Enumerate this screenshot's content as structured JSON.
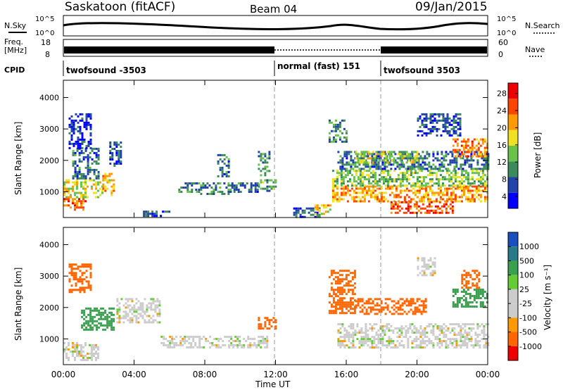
{
  "header": {
    "title": "Saskatoon (fitACF)",
    "beam": "Beam 04",
    "date": "09/Jan/2015"
  },
  "noise_panel": {
    "left_label": "N.Sky",
    "left_ticks": [
      "10^5",
      "10^0"
    ],
    "right_label": "N.Search",
    "right_ticks": [
      "10^5",
      "10^0"
    ]
  },
  "freq_panel": {
    "left_label_1": "Freq.",
    "left_label_2": "[MHz]",
    "left_ticks": [
      "18",
      "8"
    ],
    "right_label": "Nave",
    "right_ticks": [
      "60",
      "0"
    ]
  },
  "cpid_panel": {
    "label": "CPID",
    "segments": [
      {
        "start": 0,
        "end": 12,
        "text": "twofsound -3503"
      },
      {
        "start": 12,
        "end": 18,
        "text": "normal (fast) 151"
      },
      {
        "start": 18,
        "end": 24,
        "text": "twofsound 3503"
      }
    ]
  },
  "power_panel": {
    "ylabel": "Slant Range [km]",
    "yticks": [
      "4000",
      "3000",
      "2000",
      "1000"
    ],
    "colorbar_label": "Power [dB]",
    "colorbar_ticks": [
      "28",
      "24",
      "20",
      "16",
      "12",
      "8",
      "4"
    ],
    "colors": [
      "#0000ff",
      "#2244aa",
      "#3a8a5a",
      "#66c24a",
      "#f0e020",
      "#ff9a00",
      "#ff4400",
      "#ee0000"
    ]
  },
  "velocity_panel": {
    "ylabel": "Slant Range [km]",
    "yticks": [
      "4000",
      "3000",
      "2000",
      "1000"
    ],
    "colorbar_label": "Velocity [m s⁻¹]",
    "colorbar_ticks": [
      "1000",
      "500",
      "100",
      "25",
      "-25",
      "-100",
      "-500",
      "-1000"
    ],
    "colors": [
      "#1a4fc0",
      "#2a7a8a",
      "#3aa050",
      "#66cc33",
      "#cccccc",
      "#cccccc",
      "#ff9900",
      "#ff6600",
      "#ee0000"
    ]
  },
  "xaxis": {
    "label": "Time UT",
    "ticks": [
      "00:00",
      "04:00",
      "08:00",
      "12:00",
      "16:00",
      "20:00",
      "00:00"
    ]
  },
  "chart_data": {
    "type": "heatmap",
    "x_range_hours": [
      0,
      24
    ],
    "y_range_km": [
      180,
      4550
    ],
    "mode_change_hours": [
      12,
      18
    ],
    "power_blobs": [
      {
        "t0": 0.0,
        "t1": 1.2,
        "r0": 400,
        "r1": 800,
        "value": 26
      },
      {
        "t0": 0.0,
        "t1": 2.2,
        "r0": 800,
        "r1": 1400,
        "value": 20
      },
      {
        "t0": 0.5,
        "t1": 2.0,
        "r0": 1400,
        "r1": 2400,
        "value": 10
      },
      {
        "t0": 0.3,
        "t1": 1.5,
        "r0": 2400,
        "r1": 3500,
        "value": 6
      },
      {
        "t0": 2.2,
        "t1": 2.8,
        "r0": 900,
        "r1": 1600,
        "value": 22
      },
      {
        "t0": 2.6,
        "t1": 3.2,
        "r0": 1800,
        "r1": 2600,
        "value": 8
      },
      {
        "t0": 4.5,
        "t1": 6.0,
        "r0": 200,
        "r1": 400,
        "value": 8
      },
      {
        "t0": 6.5,
        "t1": 7.5,
        "r0": 1000,
        "r1": 1300,
        "value": 10
      },
      {
        "t0": 7.5,
        "t1": 9.5,
        "r0": 900,
        "r1": 1300,
        "value": 12
      },
      {
        "t0": 9.5,
        "t1": 11.0,
        "r0": 1000,
        "r1": 1300,
        "value": 10
      },
      {
        "t0": 11.0,
        "t1": 12.0,
        "r0": 1000,
        "r1": 1400,
        "value": 14
      },
      {
        "t0": 8.7,
        "t1": 9.3,
        "r0": 1500,
        "r1": 2200,
        "value": 10
      },
      {
        "t0": 11.0,
        "t1": 11.6,
        "r0": 1500,
        "r1": 2300,
        "value": 12
      },
      {
        "t0": 13.0,
        "t1": 14.5,
        "r0": 200,
        "r1": 500,
        "value": 8
      },
      {
        "t0": 14.2,
        "t1": 15.2,
        "r0": 300,
        "r1": 600,
        "value": 22
      },
      {
        "t0": 15.2,
        "t1": 24.0,
        "r0": 700,
        "r1": 1200,
        "value": 24
      },
      {
        "t0": 15.2,
        "t1": 24.0,
        "r0": 1200,
        "r1": 1700,
        "value": 16
      },
      {
        "t0": 15.5,
        "t1": 24.0,
        "r0": 1700,
        "r1": 2300,
        "value": 10
      },
      {
        "t0": 16.5,
        "t1": 20.0,
        "r0": 1900,
        "r1": 2300,
        "value": 18
      },
      {
        "t0": 18.5,
        "t1": 22.0,
        "r0": 350,
        "r1": 700,
        "value": 28
      },
      {
        "t0": 22.0,
        "t1": 24.0,
        "r0": 2100,
        "r1": 2700,
        "value": 26
      },
      {
        "t0": 15.0,
        "t1": 16.0,
        "r0": 2600,
        "r1": 3300,
        "value": 12
      },
      {
        "t0": 20.0,
        "t1": 22.5,
        "r0": 2800,
        "r1": 3500,
        "value": 8
      }
    ],
    "velocity_blobs": [
      {
        "t0": 0.0,
        "t1": 2.0,
        "r0": 300,
        "r1": 900,
        "value": 0
      },
      {
        "t0": 0.3,
        "t1": 1.5,
        "r0": 2500,
        "r1": 3400,
        "value": -300
      },
      {
        "t0": 1.0,
        "t1": 2.8,
        "r0": 1300,
        "r1": 2000,
        "value": 150
      },
      {
        "t0": 3.0,
        "t1": 5.5,
        "r0": 1500,
        "r1": 2300,
        "value": 0
      },
      {
        "t0": 5.5,
        "t1": 11.5,
        "r0": 700,
        "r1": 1100,
        "value": 0
      },
      {
        "t0": 11.0,
        "t1": 12.0,
        "r0": 1300,
        "r1": 1700,
        "value": -200
      },
      {
        "t0": 15.0,
        "t1": 16.5,
        "r0": 1800,
        "r1": 3200,
        "value": -300
      },
      {
        "t0": 15.5,
        "t1": 24.0,
        "r0": 700,
        "r1": 1500,
        "value": 0
      },
      {
        "t0": 16.5,
        "t1": 20.5,
        "r0": 1800,
        "r1": 2300,
        "value": -250
      },
      {
        "t0": 22.0,
        "t1": 24.0,
        "r0": 2000,
        "r1": 2600,
        "value": 200
      },
      {
        "t0": 20.0,
        "t1": 21.0,
        "r0": 3000,
        "r1": 3600,
        "value": 0
      },
      {
        "t0": 22.5,
        "t1": 23.5,
        "r0": 2600,
        "r1": 3200,
        "value": -200
      }
    ]
  }
}
